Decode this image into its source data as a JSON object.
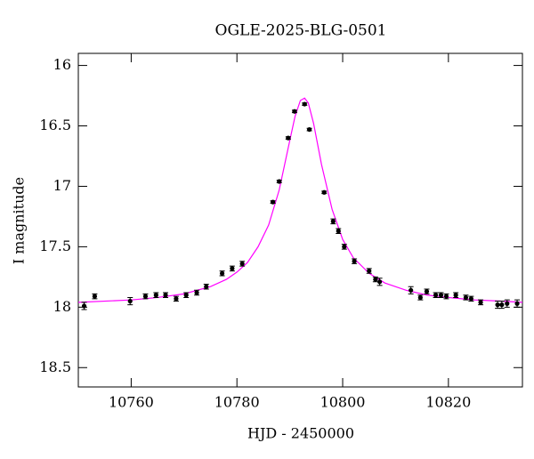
{
  "chart_data": {
    "type": "scatter",
    "title": "OGLE-2025-BLG-0501",
    "xlabel": "HJD - 2450000",
    "ylabel": "I magnitude",
    "x": [
      10751.1,
      10753.1,
      10759.8,
      10762.7,
      10764.7,
      10766.5,
      10768.5,
      10770.4,
      10772.4,
      10774.2,
      10777.2,
      10779.1,
      10781.0,
      10786.8,
      10788.0,
      10789.7,
      10790.9,
      10792.8,
      10793.7,
      10796.5,
      10798.2,
      10799.2,
      10800.3,
      10802.2,
      10805.0,
      10806.2,
      10807.0,
      10812.9,
      10814.7,
      10815.9,
      10817.6,
      10818.6,
      10819.6,
      10821.4,
      10823.3,
      10824.3,
      10826.1,
      10829.3,
      10830.1,
      10831.1,
      10833.0
    ],
    "values": [
      17.99,
      17.91,
      17.95,
      17.91,
      17.9,
      17.9,
      17.93,
      17.9,
      17.88,
      17.83,
      17.72,
      17.68,
      17.64,
      17.13,
      16.96,
      16.6,
      16.38,
      16.32,
      16.53,
      17.05,
      17.29,
      17.37,
      17.5,
      17.62,
      17.7,
      17.77,
      17.79,
      17.86,
      17.92,
      17.87,
      17.9,
      17.9,
      17.91,
      17.9,
      17.92,
      17.93,
      17.96,
      17.98,
      17.98,
      17.97,
      17.97
    ],
    "errors": [
      0.03,
      0.02,
      0.03,
      0.02,
      0.02,
      0.02,
      0.02,
      0.02,
      0.02,
      0.02,
      0.02,
      0.02,
      0.02,
      0.01,
      0.01,
      0.01,
      0.01,
      0.01,
      0.01,
      0.01,
      0.02,
      0.02,
      0.02,
      0.02,
      0.02,
      0.02,
      0.03,
      0.03,
      0.02,
      0.02,
      0.02,
      0.02,
      0.02,
      0.02,
      0.02,
      0.02,
      0.02,
      0.03,
      0.03,
      0.03,
      0.03
    ],
    "color": "#000000",
    "model": {
      "color": "#ff00ff",
      "x": [
        10750,
        10760,
        10765,
        10770,
        10775,
        10778,
        10780,
        10782,
        10784,
        10786,
        10788,
        10790,
        10791,
        10792,
        10792.8,
        10793.5,
        10794.5,
        10796,
        10798,
        10800,
        10802,
        10805,
        10808,
        10812,
        10816,
        10820,
        10825,
        10830,
        10834
      ],
      "values": [
        17.96,
        17.94,
        17.92,
        17.89,
        17.83,
        17.77,
        17.71,
        17.63,
        17.5,
        17.32,
        17.03,
        16.62,
        16.42,
        16.29,
        16.27,
        16.31,
        16.48,
        16.82,
        17.19,
        17.44,
        17.59,
        17.72,
        17.8,
        17.86,
        17.9,
        17.92,
        17.94,
        17.95,
        17.96
      ]
    },
    "xlim": [
      10750,
      10834
    ],
    "ylim": [
      18.66,
      15.9
    ],
    "xticks": [
      10760,
      10780,
      10800,
      10820
    ],
    "yticks": [
      16,
      16.5,
      17,
      17.5,
      18,
      18.5
    ]
  }
}
